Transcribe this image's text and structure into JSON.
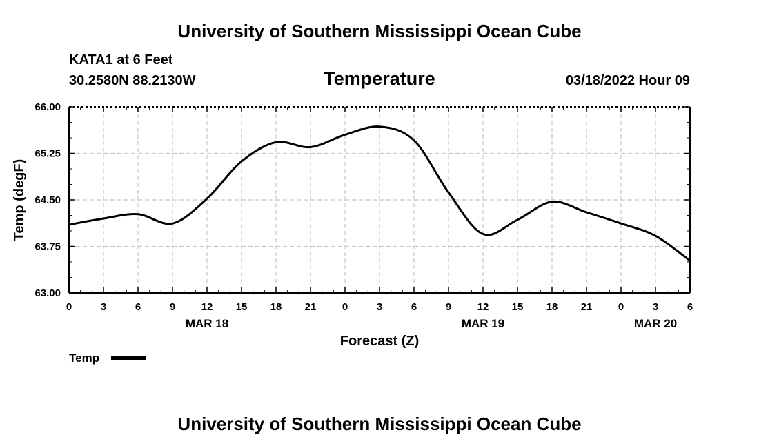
{
  "header": {
    "title": "University of Southern Mississippi Ocean Cube",
    "station": "KATA1 at 6 Feet",
    "coords": "30.2580N  88.2130W",
    "date": "03/18/2022 Hour 09"
  },
  "footer": {
    "title": "University of Southern Mississippi Ocean Cube"
  },
  "chart_data": {
    "type": "line",
    "title": "Temperature",
    "xlabel": "Forecast (Z)",
    "ylabel": "Temp (degF)",
    "x_hours": [
      0,
      3,
      6,
      9,
      12,
      15,
      18,
      21,
      24,
      27,
      30,
      33,
      36,
      39,
      42,
      45,
      48,
      51,
      54
    ],
    "x_tick_labels": [
      "0",
      "3",
      "6",
      "9",
      "12",
      "15",
      "18",
      "21",
      "0",
      "3",
      "6",
      "9",
      "12",
      "15",
      "18",
      "21",
      "0",
      "3",
      "6"
    ],
    "date_labels": [
      {
        "label": "MAR 18",
        "hour": 12
      },
      {
        "label": "MAR 19",
        "hour": 36
      },
      {
        "label": "MAR 20",
        "hour": 51
      }
    ],
    "y_ticks": [
      "63.00",
      "63.75",
      "64.50",
      "65.25",
      "66.00"
    ],
    "ylim": [
      63.0,
      66.0
    ],
    "xlim": [
      0,
      54
    ],
    "grid": true,
    "legend_position": "bottom-left",
    "series": [
      {
        "name": "Temp",
        "color": "#000000",
        "points": [
          [
            0,
            64.1
          ],
          [
            3,
            64.2
          ],
          [
            6,
            64.27
          ],
          [
            9,
            64.12
          ],
          [
            12,
            64.52
          ],
          [
            15,
            65.12
          ],
          [
            18,
            65.43
          ],
          [
            21,
            65.35
          ],
          [
            24,
            65.55
          ],
          [
            27,
            65.68
          ],
          [
            30,
            65.46
          ],
          [
            33,
            64.62
          ],
          [
            36,
            63.95
          ],
          [
            39,
            64.18
          ],
          [
            42,
            64.47
          ],
          [
            45,
            64.3
          ],
          [
            48,
            64.12
          ],
          [
            51,
            63.92
          ],
          [
            54,
            63.52
          ]
        ]
      }
    ]
  }
}
